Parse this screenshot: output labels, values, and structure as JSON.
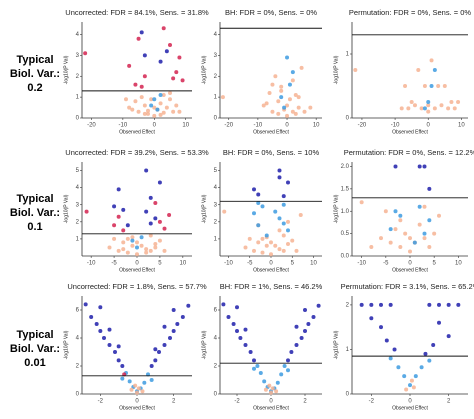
{
  "row_labels": [
    [
      "Typical",
      "Biol. Var.:",
      "0.2"
    ],
    [
      "Typical",
      "Biol. Var.:",
      "0.1"
    ],
    [
      "Typical",
      "Biol. Var.:",
      "0.01"
    ]
  ],
  "chart_data": [
    {
      "type": "scatter",
      "title": "Uncorrected: FDR = 84.1%, Sens. = 31.8%",
      "xlabel": "Observed Effect",
      "ylabel": "-log10(P Val)",
      "xlim": [
        -23,
        12
      ],
      "ylim": [
        0,
        4.6
      ],
      "xticks": [
        -20,
        -10,
        0,
        10
      ],
      "yticks": [
        0,
        1,
        2,
        3,
        4
      ],
      "hline": 1.3,
      "series": [
        {
          "color": "#f6b393",
          "x": [
            -8,
            -6,
            -5,
            -4,
            -3,
            -2,
            -1,
            0,
            1,
            2,
            3,
            4,
            5,
            6,
            7,
            -7,
            -3,
            2,
            5,
            -9,
            8,
            0,
            -2,
            3
          ],
          "y": [
            0.5,
            0.8,
            0.3,
            1.0,
            0.6,
            0.2,
            0.9,
            0.1,
            0.4,
            0.7,
            1.1,
            0.5,
            0.9,
            0.3,
            0.6,
            0.4,
            0.2,
            0.15,
            1.2,
            0.9,
            0.3,
            0.5,
            0.35,
            0.25
          ]
        },
        {
          "color": "#d42350",
          "x": [
            -22,
            -8,
            -5,
            -3,
            5,
            7,
            9,
            -6,
            3,
            8,
            -4,
            6
          ],
          "y": [
            3.1,
            2.5,
            3.8,
            2.0,
            3.5,
            2.2,
            1.8,
            1.6,
            4.3,
            2.9,
            1.5,
            1.9
          ]
        },
        {
          "color": "#1e1eaa",
          "x": [
            -3,
            2,
            4,
            -4
          ],
          "y": [
            3.0,
            2.7,
            3.2,
            4.1
          ]
        },
        {
          "color": "#3d9be0",
          "x": [
            -1,
            1,
            0,
            2
          ],
          "y": [
            0.6,
            0.4,
            0.9,
            1.1
          ]
        }
      ]
    },
    {
      "type": "scatter",
      "title": "BH: FDR = 0%, Sens. = 0%",
      "xlabel": "Observed Effect",
      "ylabel": "-log10(P Val)",
      "xlim": [
        -23,
        12
      ],
      "ylim": [
        0,
        4.6
      ],
      "xticks": [
        -20,
        -10,
        0,
        10
      ],
      "yticks": [
        0,
        1,
        2,
        3,
        4
      ],
      "hline": 4.3,
      "series": [
        {
          "color": "#f6b393",
          "x": [
            -8,
            -6,
            -5,
            -4,
            -3,
            -2,
            -1,
            0,
            1,
            2,
            3,
            4,
            5,
            6,
            -7,
            -3,
            2,
            -22,
            8,
            0,
            -2,
            3,
            -5,
            4
          ],
          "y": [
            0.6,
            1.2,
            0.3,
            2.0,
            0.8,
            1.5,
            0.4,
            0.1,
            0.9,
            1.8,
            1.1,
            0.5,
            2.4,
            0.3,
            0.7,
            0.2,
            0.3,
            1.0,
            0.5,
            0.6,
            1.3,
            0.2,
            1.6,
            1.0
          ]
        },
        {
          "color": "#3d9be0",
          "x": [
            -1,
            1,
            2,
            0,
            -2
          ],
          "y": [
            0.5,
            1.6,
            2.2,
            2.9,
            1.0
          ]
        }
      ]
    },
    {
      "type": "scatter",
      "title": "Permutation: FDR = 0%, Sens. = 0%",
      "xlabel": "Observed Effect",
      "ylabel": "-log10(P Val)",
      "xlim": [
        -23,
        12
      ],
      "ylim": [
        0,
        1.5
      ],
      "xticks": [
        -20,
        -10,
        0,
        10
      ],
      "yticks": [
        0,
        1
      ],
      "hline": 1.3,
      "series": [
        {
          "color": "#f6b393",
          "x": [
            -8,
            -6,
            -4,
            -2,
            0,
            2,
            4,
            6,
            8,
            -5,
            -1,
            3,
            7,
            -22,
            -3,
            1,
            5,
            -7,
            0,
            9
          ],
          "y": [
            0.15,
            0.15,
            0.2,
            0.15,
            0.2,
            0.15,
            0.2,
            0.15,
            0.15,
            0.25,
            0.5,
            0.5,
            0.25,
            0.75,
            0.75,
            0.9,
            0.5,
            0.5,
            0.1,
            0.25
          ]
        },
        {
          "color": "#3d9be0",
          "x": [
            0,
            1,
            -1,
            2
          ],
          "y": [
            0.25,
            0.5,
            0.15,
            0.75
          ]
        }
      ]
    },
    {
      "type": "scatter",
      "title": "Uncorrected: FDR = 39.2%, Sens. = 53.3%",
      "xlabel": "Observed Effect",
      "ylabel": "-log10(P Val)",
      "xlim": [
        -12,
        12
      ],
      "ylim": [
        0,
        5.5
      ],
      "xticks": [
        -10,
        -5,
        0,
        5,
        10
      ],
      "yticks": [
        1,
        2,
        3,
        4,
        5
      ],
      "hline": 1.3,
      "series": [
        {
          "color": "#f6b393",
          "x": [
            -6,
            -5,
            -4,
            -3,
            -2,
            -1,
            0,
            1,
            2,
            3,
            4,
            5,
            6,
            -3,
            -1,
            2,
            4,
            0,
            -2,
            3
          ],
          "y": [
            0.5,
            1.0,
            0.3,
            0.8,
            0.2,
            1.1,
            0.1,
            0.6,
            0.4,
            1.2,
            0.7,
            0.9,
            0.3,
            0.4,
            0.6,
            0.2,
            0.5,
            0.8,
            1.0,
            0.3
          ]
        },
        {
          "color": "#d42350",
          "x": [
            -11,
            -5,
            -4,
            5,
            6,
            7,
            -3,
            4
          ],
          "y": [
            2.6,
            1.8,
            2.3,
            2.0,
            1.6,
            2.4,
            1.5,
            3.1
          ]
        },
        {
          "color": "#1e1eaa",
          "x": [
            -4,
            -3,
            -2,
            2,
            3,
            4,
            5,
            -5,
            3,
            2
          ],
          "y": [
            3.9,
            2.7,
            1.8,
            5.0,
            3.4,
            2.2,
            4.3,
            2.9,
            1.9,
            2.6
          ]
        },
        {
          "color": "#3d9be0",
          "x": [
            -1,
            1,
            0
          ],
          "y": [
            0.9,
            1.1,
            0.5
          ]
        }
      ]
    },
    {
      "type": "scatter",
      "title": "BH: FDR = 0%, Sens. = 10%",
      "xlabel": "Observed Effect",
      "ylabel": "-log10(P Val)",
      "xlim": [
        -12,
        12
      ],
      "ylim": [
        0,
        5.5
      ],
      "xticks": [
        -10,
        -5,
        0,
        5,
        10
      ],
      "yticks": [
        1,
        2,
        3,
        4,
        5
      ],
      "hline": 3.2,
      "series": [
        {
          "color": "#f6b393",
          "x": [
            -6,
            -5,
            -4,
            -3,
            -2,
            -1,
            0,
            1,
            2,
            3,
            4,
            5,
            6,
            -3,
            -1,
            2,
            4,
            0,
            -2,
            3,
            -11,
            7
          ],
          "y": [
            0.5,
            1.0,
            0.3,
            0.8,
            0.2,
            1.1,
            0.1,
            0.6,
            0.4,
            1.2,
            0.7,
            0.9,
            0.3,
            1.8,
            0.6,
            1.5,
            2.0,
            0.8,
            1.0,
            0.3,
            2.6,
            2.4
          ]
        },
        {
          "color": "#3d9be0",
          "x": [
            -4,
            -3,
            -2,
            2,
            3,
            4,
            -1,
            1,
            3,
            -3
          ],
          "y": [
            2.5,
            1.8,
            2.9,
            2.2,
            3.0,
            1.5,
            1.2,
            2.6,
            1.9,
            3.1
          ]
        },
        {
          "color": "#1e1eaa",
          "x": [
            -4,
            2,
            3,
            4,
            -3,
            2
          ],
          "y": [
            3.9,
            5.0,
            3.5,
            4.3,
            3.6,
            4.6
          ]
        }
      ]
    },
    {
      "type": "scatter",
      "title": "Permutation: FDR = 0%, Sens. = 12.2%",
      "xlabel": "Observed Effect",
      "ylabel": "-log10(P Val)",
      "xlim": [
        -12,
        12
      ],
      "ylim": [
        0,
        2.1
      ],
      "xticks": [
        -10,
        -5,
        0,
        5,
        10
      ],
      "yticks": [
        {
          "value": 0,
          "label": "0.0"
        },
        0.5,
        {
          "value": 1,
          "label": "1.0"
        },
        1.5,
        {
          "value": 2,
          "label": "2.0"
        }
      ],
      "hline": 1.3,
      "series": [
        {
          "color": "#f6b393",
          "x": [
            -8,
            -6,
            -4,
            -3,
            -2,
            -1,
            0,
            1,
            2,
            3,
            4,
            6,
            -5,
            3,
            5,
            -10,
            -2,
            0
          ],
          "y": [
            0.2,
            0.4,
            0.3,
            0.6,
            0.2,
            0.5,
            0.1,
            0.3,
            0.7,
            0.4,
            0.2,
            0.9,
            1.0,
            1.1,
            0.5,
            1.2,
            0.8,
            0.4
          ]
        },
        {
          "color": "#3d9be0",
          "x": [
            -4,
            -2,
            2,
            3,
            4,
            1,
            -3
          ],
          "y": [
            0.6,
            0.9,
            1.1,
            0.5,
            0.8,
            0.3,
            1.0
          ]
        },
        {
          "color": "#1e1eaa",
          "x": [
            -3,
            2,
            3,
            4
          ],
          "y": [
            2.0,
            2.0,
            2.0,
            1.5
          ]
        }
      ]
    },
    {
      "type": "scatter",
      "title": "Uncorrected: FDR = 1.8%, Sens. = 57.7%",
      "xlabel": "Observed Effect",
      "ylabel": "-log10(P Val)",
      "xlim": [
        -3,
        3
      ],
      "ylim": [
        0,
        7
      ],
      "xticks": [
        -2,
        0,
        2
      ],
      "yticks": [
        0,
        2,
        4,
        6
      ],
      "hline": 1.3,
      "series": [
        {
          "color": "#1e1eaa",
          "x": [
            -2.5,
            -2.2,
            -2.0,
            -1.8,
            -1.5,
            -1.2,
            -1.0,
            -0.8,
            0.8,
            1.0,
            1.2,
            1.5,
            1.8,
            2.0,
            2.2,
            2.5,
            -2.0,
            -1.5,
            1.5,
            2.0,
            -1.0,
            1.0,
            -2.8,
            2.8
          ],
          "y": [
            5.5,
            5.0,
            4.5,
            4.0,
            3.5,
            3.0,
            2.4,
            2.0,
            2.0,
            2.4,
            3.0,
            3.5,
            4.0,
            4.5,
            5.0,
            5.5,
            6.2,
            4.6,
            4.8,
            6.0,
            3.4,
            3.2,
            6.4,
            6.3
          ]
        },
        {
          "color": "#3d9be0",
          "x": [
            -0.6,
            -0.4,
            -0.2,
            0,
            0.2,
            0.4,
            0.6,
            -0.8,
            0.8
          ],
          "y": [
            1.5,
            0.9,
            0.5,
            0.2,
            0.4,
            0.8,
            1.4,
            1.1,
            1.0
          ]
        },
        {
          "color": "#f6b393",
          "x": [
            -0.3,
            0,
            0.3,
            -0.1,
            0.1
          ],
          "y": [
            0.3,
            0.1,
            0.2,
            0.6,
            0.4
          ]
        },
        {
          "color": "#d42350",
          "x": [
            -0.7
          ],
          "y": [
            1.4
          ]
        }
      ]
    },
    {
      "type": "scatter",
      "title": "BH: FDR = 1%, Sens. = 46.2%",
      "xlabel": "Observed Effect",
      "ylabel": "-log10(P Val)",
      "xlim": [
        -3,
        3
      ],
      "ylim": [
        0,
        7
      ],
      "xticks": [
        -2,
        0,
        2
      ],
      "yticks": [
        0,
        2,
        4,
        6
      ],
      "hline": 2.2,
      "series": [
        {
          "color": "#1e1eaa",
          "x": [
            -2.5,
            -2.2,
            -2.0,
            -1.8,
            -1.5,
            -1.2,
            -1.0,
            1.0,
            1.2,
            1.5,
            1.8,
            2.0,
            2.2,
            2.5,
            -2.0,
            -1.5,
            1.5,
            2.0,
            -2.8,
            2.8
          ],
          "y": [
            5.5,
            5.0,
            4.5,
            4.0,
            3.5,
            3.0,
            2.4,
            2.4,
            3.0,
            3.5,
            4.0,
            4.5,
            5.0,
            5.5,
            6.2,
            4.6,
            4.8,
            6.0,
            6.4,
            6.3
          ]
        },
        {
          "color": "#3d9be0",
          "x": [
            -0.8,
            -0.6,
            -0.4,
            -0.2,
            0,
            0.2,
            0.4,
            0.6,
            0.8,
            -1.0,
            1.0
          ],
          "y": [
            2.0,
            1.5,
            0.9,
            0.5,
            0.2,
            0.4,
            0.8,
            1.4,
            2.0,
            1.8,
            1.7
          ]
        },
        {
          "color": "#f6b393",
          "x": [
            -0.3,
            0,
            0.3,
            -0.1,
            0.1
          ],
          "y": [
            0.3,
            0.1,
            0.2,
            0.6,
            0.4
          ]
        }
      ]
    },
    {
      "type": "scatter",
      "title": "Permutation: FDR = 3.1%, Sens. = 65.2%",
      "xlabel": "Observed Effect",
      "ylabel": "-log10(P Val)",
      "xlim": [
        -3,
        3
      ],
      "ylim": [
        0,
        2.2
      ],
      "xticks": [
        -2,
        0,
        2
      ],
      "yticks": [
        0,
        1,
        2
      ],
      "hline": 0.85,
      "series": [
        {
          "color": "#1e1eaa",
          "x": [
            -2.5,
            -2,
            -1.5,
            -1,
            1,
            1.5,
            2,
            2.5,
            -2,
            -1.5,
            1.5,
            2,
            -1.2,
            1.2,
            -0.8,
            0.8
          ],
          "y": [
            2.0,
            2.0,
            2.0,
            2.0,
            2.0,
            2.0,
            2.0,
            2.0,
            1.7,
            1.5,
            1.6,
            1.3,
            1.2,
            1.1,
            1.0,
            0.9
          ]
        },
        {
          "color": "#3d9be0",
          "x": [
            -0.6,
            -0.3,
            0,
            0.3,
            0.6,
            -1,
            1
          ],
          "y": [
            0.6,
            0.4,
            0.2,
            0.4,
            0.6,
            0.8,
            0.75
          ]
        },
        {
          "color": "#f6b393",
          "x": [
            -0.2,
            0.1,
            0.2
          ],
          "y": [
            0.1,
            0.3,
            0.15
          ]
        }
      ]
    }
  ]
}
